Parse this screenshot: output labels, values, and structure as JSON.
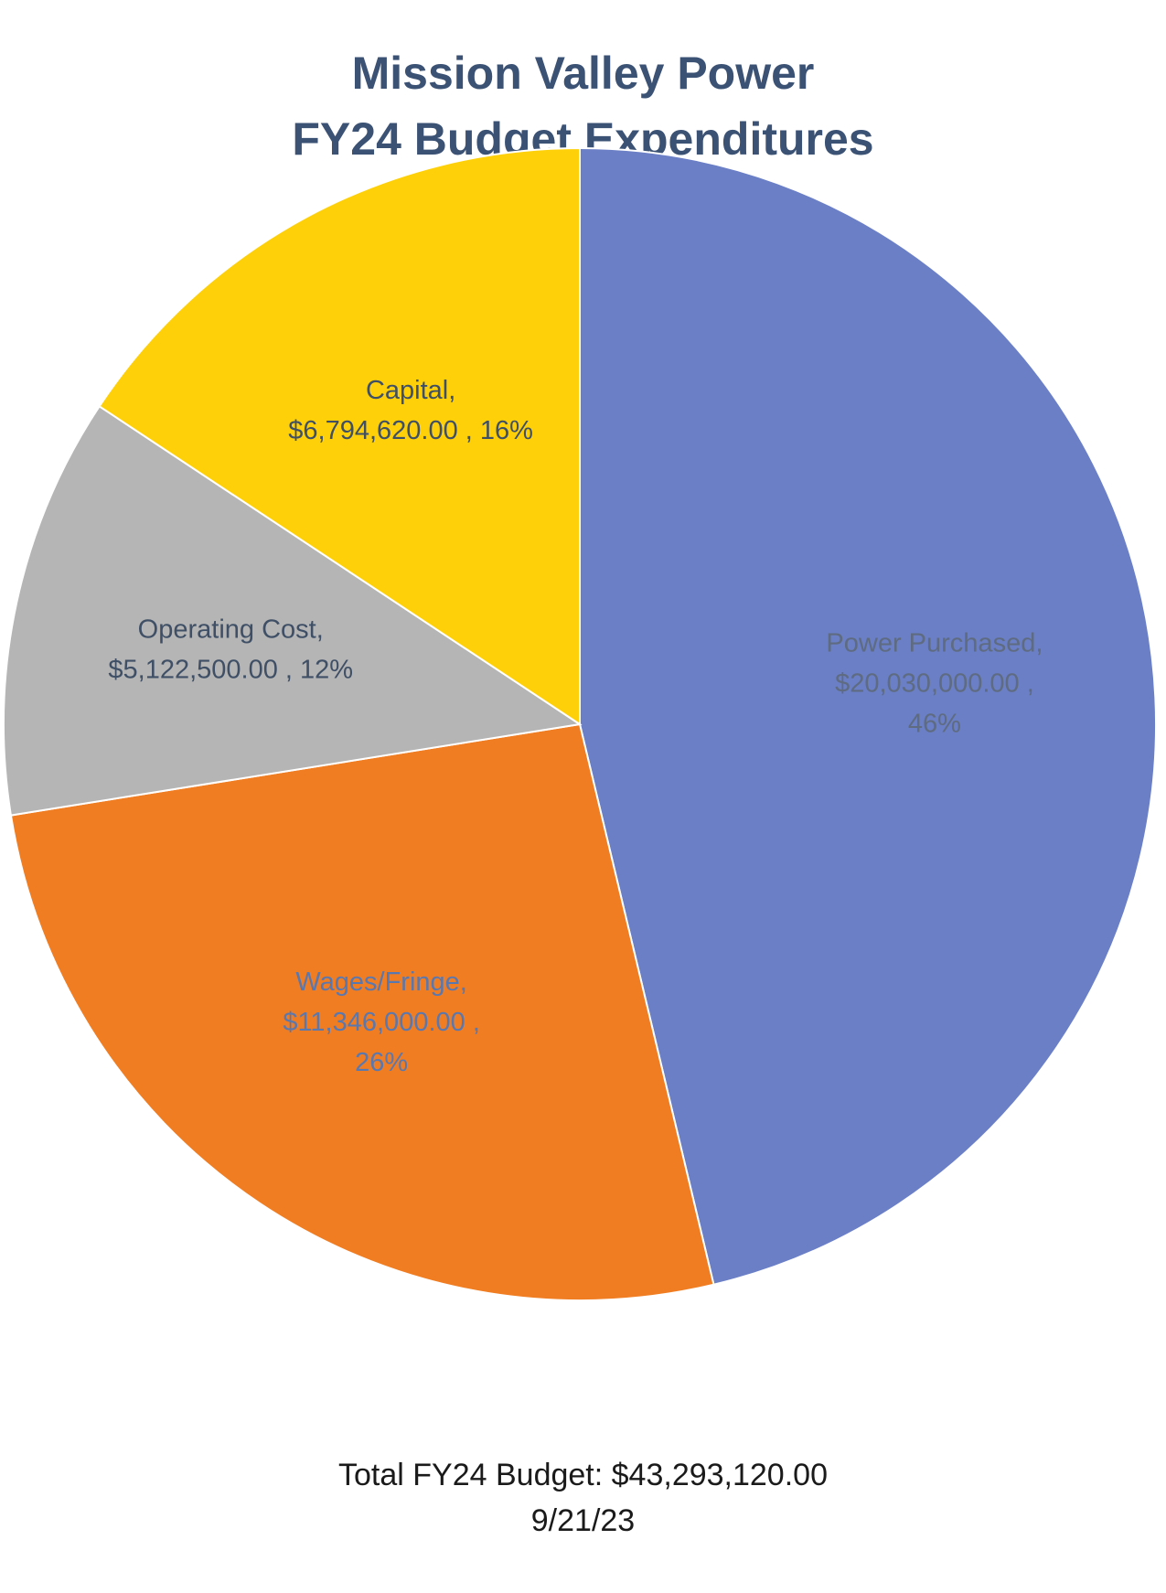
{
  "title": {
    "line1": "Mission Valley Power",
    "line2": "FY24 Budget Expenditures"
  },
  "chart_data": {
    "type": "pie",
    "title": "Mission Valley Power FY24 Budget Expenditures",
    "start_angle_deg": 0,
    "direction": "clockwise",
    "slices": [
      {
        "name": "Power Purchased",
        "value": 20030000,
        "percent": 46,
        "color": "#6b7fc6",
        "label_color": "#5e6b80",
        "label_lines": [
          "Power Purchased,",
          "$20,030,000.00 ,",
          "46%"
        ]
      },
      {
        "name": "Wages/Fringe",
        "value": 11346000,
        "percent": 26,
        "color": "#f07d22",
        "label_color": "#5a78b0",
        "label_lines": [
          "Wages/Fringe,",
          "$11,346,000.00 ,",
          "26%"
        ]
      },
      {
        "name": "Operating Cost",
        "value": 5122500,
        "percent": 12,
        "color": "#b5b5b5",
        "label_color": "#3f4f66",
        "label_lines": [
          "Operating Cost,",
          "$5,122,500.00 , 12%"
        ]
      },
      {
        "name": "Capital",
        "value": 6794620,
        "percent": 16,
        "color": "#fdd00a",
        "label_color": "#3f4f66",
        "label_lines": [
          "Capital,",
          "$6,794,620.00 , 16%"
        ]
      }
    ]
  },
  "footer": {
    "total": "Total FY24 Budget: $43,293,120.00",
    "date": "9/21/23"
  }
}
